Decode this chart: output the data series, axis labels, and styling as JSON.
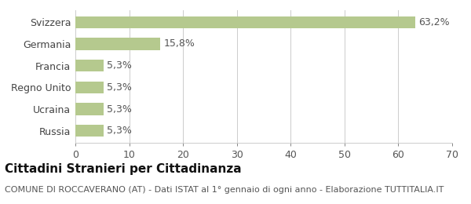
{
  "categories": [
    "Russia",
    "Ucraina",
    "Regno Unito",
    "Francia",
    "Germania",
    "Svizzera"
  ],
  "values": [
    5.3,
    5.3,
    5.3,
    5.3,
    15.8,
    63.2
  ],
  "labels": [
    "5,3%",
    "5,3%",
    "5,3%",
    "5,3%",
    "15,8%",
    "63,2%"
  ],
  "bar_color": "#b5c98e",
  "background_color": "#ffffff",
  "xlim": [
    0,
    70
  ],
  "xticks": [
    0,
    10,
    20,
    30,
    40,
    50,
    60,
    70
  ],
  "title_main": "Cittadini Stranieri per Cittadinanza",
  "title_sub": "COMUNE DI ROCCAVERANO (AT) - Dati ISTAT al 1° gennaio di ogni anno - Elaborazione TUTTITALIA.IT",
  "title_main_fontsize": 11,
  "title_sub_fontsize": 8,
  "label_fontsize": 9,
  "tick_label_fontsize": 9,
  "grid_color": "#cccccc"
}
